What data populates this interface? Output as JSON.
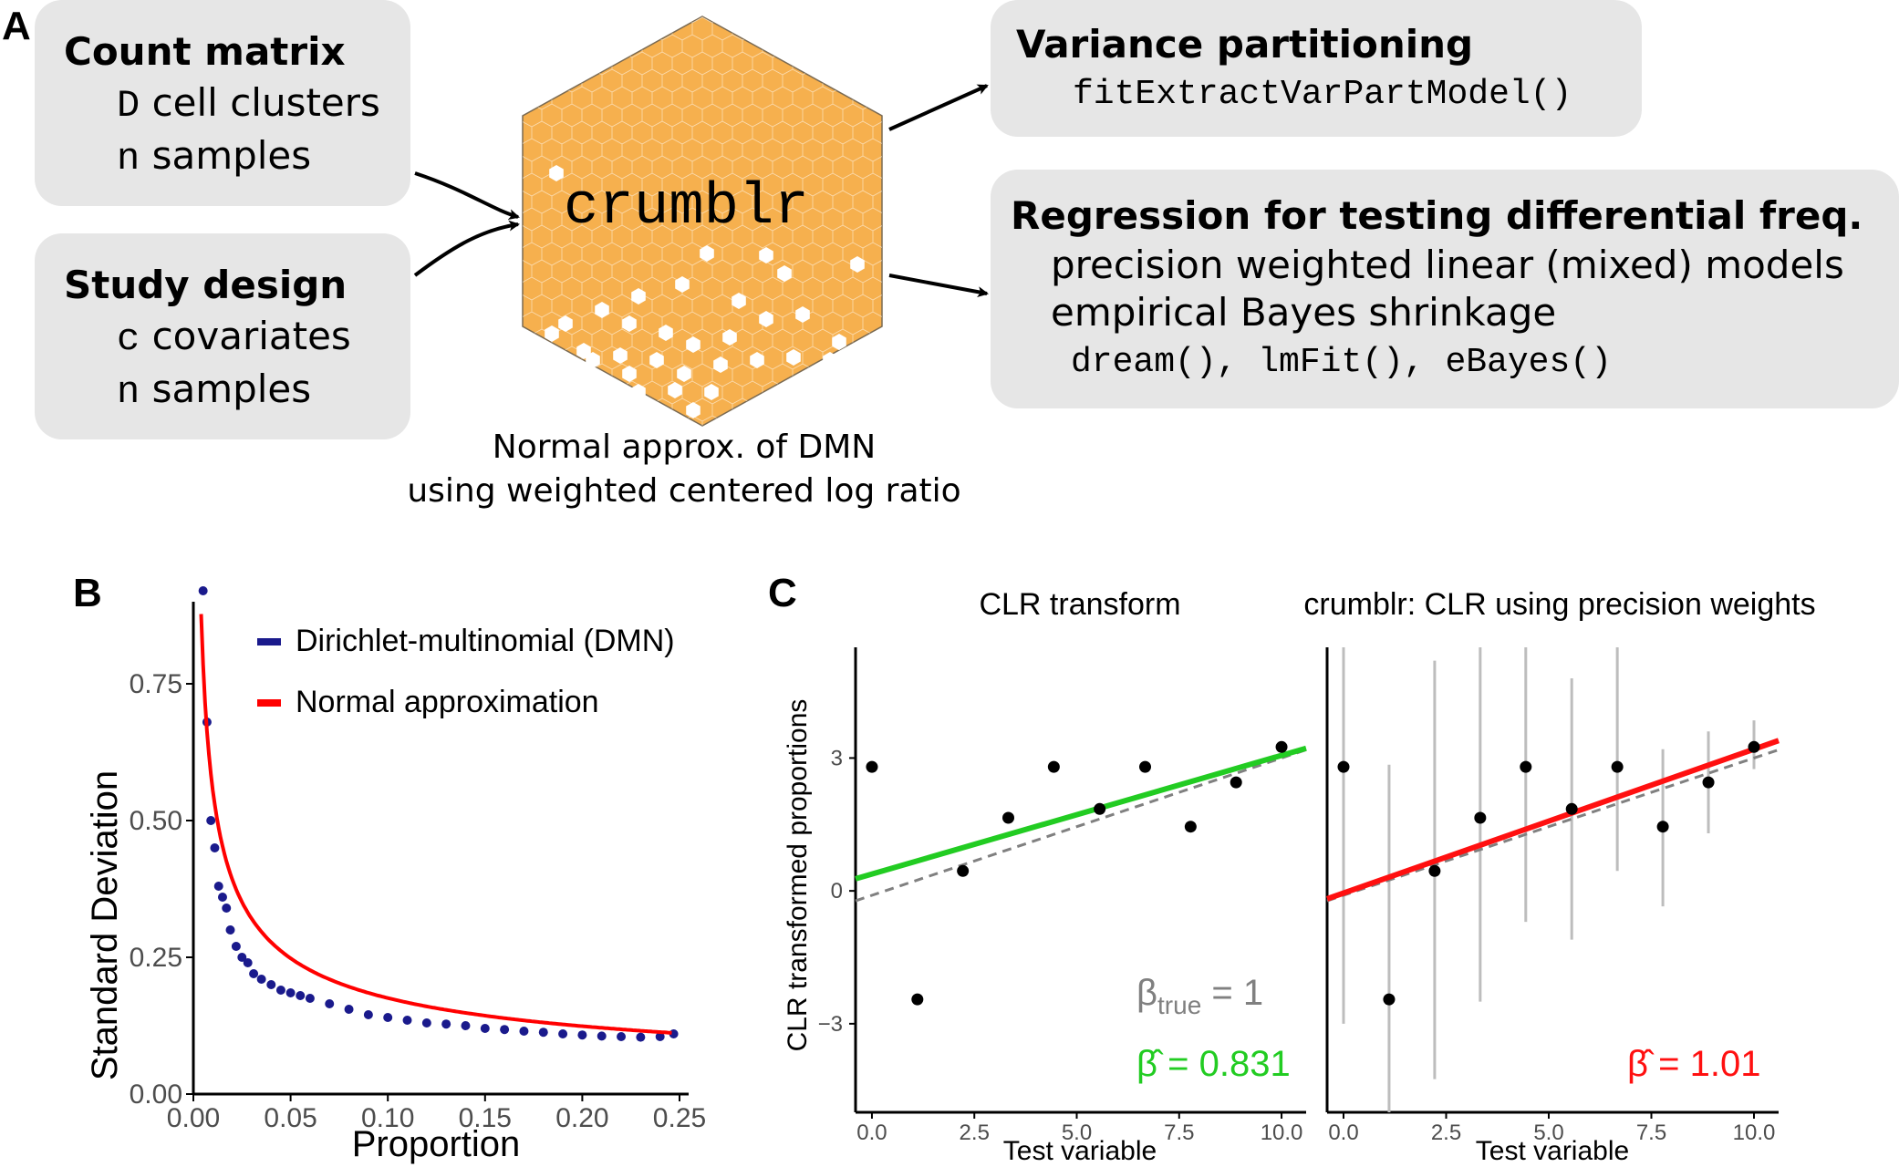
{
  "panels": {
    "a": "A",
    "b": "B",
    "c": "C"
  },
  "count_box": {
    "title": "Count matrix",
    "line1_var": "D",
    "line1_text": " cell clusters",
    "line2_var": "n",
    "line2_text": " samples"
  },
  "design_box": {
    "title": "Study design",
    "line1_var": "c",
    "line1_text": " covariates",
    "line2_var": "n",
    "line2_text": " samples"
  },
  "center": {
    "label": "crumblr",
    "caption1": "Normal approx. of DMN",
    "caption2": "using weighted centered log ratio"
  },
  "varpart_box": {
    "title": "Variance partitioning",
    "code": "fitExtractVarPartModel()"
  },
  "regression_box": {
    "title": "Regression for testing differential freq.",
    "line1": "precision weighted linear (mixed) models",
    "line2": "empirical Bayes shrinkage",
    "code": "dream(), lmFit(), eBayes()"
  },
  "colors": {
    "box": "#e6e6e6",
    "hex_fill": "#f6b04e",
    "dmn": "#1a1a8c",
    "normal": "#ff0000",
    "fit_clr": "#22cc22",
    "fit_crumblr": "#ff1010"
  },
  "chart_data": [
    {
      "type": "scatter",
      "panel": "B",
      "xlabel": "Proportion",
      "ylabel": "Standard Deviation",
      "xlim": [
        0,
        0.25
      ],
      "ylim": [
        0,
        0.9
      ],
      "xticks": [
        "0.00",
        "0.05",
        "0.10",
        "0.15",
        "0.20",
        "0.25"
      ],
      "yticks": [
        "0.00",
        "0.25",
        "0.50",
        "0.75"
      ],
      "legend": [
        "Dirichlet-multinomial (DMN)",
        "Normal approximation"
      ],
      "legend_position": "top-right",
      "series": [
        {
          "name": "Dirichlet-multinomial (DMN)",
          "kind": "points",
          "x": [
            0.005,
            0.007,
            0.009,
            0.011,
            0.013,
            0.015,
            0.017,
            0.019,
            0.022,
            0.025,
            0.028,
            0.031,
            0.035,
            0.04,
            0.045,
            0.05,
            0.055,
            0.06,
            0.07,
            0.08,
            0.09,
            0.1,
            0.11,
            0.12,
            0.13,
            0.14,
            0.15,
            0.16,
            0.17,
            0.18,
            0.19,
            0.2,
            0.21,
            0.22,
            0.23,
            0.24,
            0.247
          ],
          "y": [
            0.92,
            0.68,
            0.5,
            0.45,
            0.38,
            0.36,
            0.34,
            0.3,
            0.27,
            0.25,
            0.24,
            0.22,
            0.21,
            0.2,
            0.19,
            0.185,
            0.18,
            0.175,
            0.165,
            0.155,
            0.145,
            0.14,
            0.135,
            0.13,
            0.128,
            0.125,
            0.12,
            0.118,
            0.115,
            0.113,
            0.11,
            0.108,
            0.106,
            0.105,
            0.104,
            0.105,
            0.11
          ]
        },
        {
          "name": "Normal approximation",
          "kind": "curve",
          "formula": "0.0555/sqrt(x)"
        }
      ]
    },
    {
      "type": "scatter",
      "panel": "C-left",
      "title": "CLR transform",
      "xlabel": "Test variable",
      "ylabel": "CLR transformed proportions",
      "xlim": [
        -0.4,
        10.6
      ],
      "ylim": [
        -5,
        5.5
      ],
      "xticks": [
        "0.0",
        "2.5",
        "5.0",
        "7.5",
        "10.0"
      ],
      "yticks": [
        "-3",
        "0",
        "3"
      ],
      "x": [
        0,
        1.11,
        2.22,
        3.33,
        4.44,
        5.56,
        6.67,
        7.78,
        8.89,
        10
      ],
      "y": [
        2.8,
        -2.45,
        0.45,
        1.65,
        2.8,
        1.85,
        2.8,
        1.45,
        2.45,
        3.25
      ],
      "fit": {
        "intercept": 0.38,
        "slope": 0.268
      },
      "true_line": {
        "intercept": -0.1,
        "slope": 0.31
      },
      "annotation_true": {
        "prefix": "β",
        "sub": "true",
        "suffix": " = 1"
      },
      "annotation_est": {
        "prefix": "β̂",
        "suffix": " = 0.831"
      }
    },
    {
      "type": "scatter",
      "panel": "C-right",
      "title": "crumblr: CLR using precision weights",
      "xlabel": "Test variable",
      "xlim": [
        -0.4,
        10.6
      ],
      "ylim": [
        -5,
        5.5
      ],
      "xticks": [
        "0.0",
        "2.5",
        "5.0",
        "7.5",
        "10.0"
      ],
      "x": [
        0,
        1.11,
        2.22,
        3.33,
        4.44,
        5.56,
        6.67,
        7.78,
        8.89,
        10
      ],
      "y": [
        2.8,
        -2.45,
        0.45,
        1.65,
        2.8,
        1.85,
        2.8,
        1.45,
        2.45,
        3.25
      ],
      "err_low": [
        -3.0,
        -5.2,
        -4.25,
        -2.5,
        -0.7,
        -1.1,
        0.45,
        -0.35,
        1.3,
        2.75
      ],
      "err_high": [
        5.6,
        2.85,
        5.2,
        5.7,
        5.8,
        4.8,
        5.5,
        3.2,
        3.6,
        3.85
      ],
      "fit": {
        "intercept": -0.05,
        "slope": 0.325
      },
      "true_line": {
        "intercept": -0.1,
        "slope": 0.31
      },
      "annotation_est": {
        "prefix": "β̂",
        "suffix": " = 1.01"
      }
    }
  ]
}
